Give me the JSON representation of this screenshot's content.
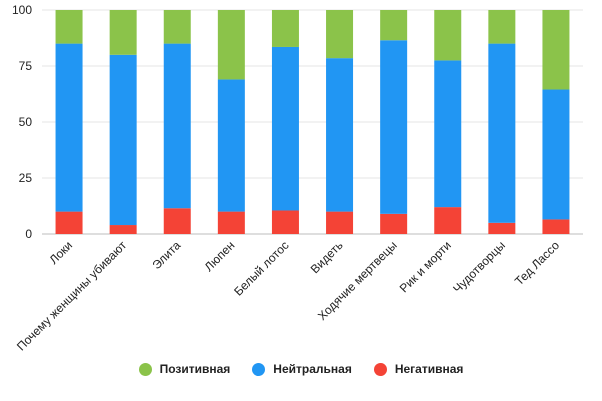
{
  "chart_data": {
    "type": "bar",
    "stacked": true,
    "categories": [
      "Локи",
      "Почему женщины убивают",
      "Элита",
      "Люпен",
      "Белый лотос",
      "Видеть",
      "Ходячие мертвецы",
      "Рик и морти",
      "Чудотворцы",
      "Тед Лассо"
    ],
    "series": [
      {
        "name": "Негативная",
        "color": "#f44336",
        "values": [
          10,
          4,
          11.5,
          10,
          10.5,
          10,
          9,
          12,
          5,
          6.5
        ]
      },
      {
        "name": "Нейтральная",
        "color": "#2196f3",
        "values": [
          75,
          76,
          73.5,
          59,
          73,
          68.5,
          77.5,
          65.5,
          80,
          58
        ]
      },
      {
        "name": "Позитивная",
        "color": "#8bc34a",
        "values": [
          15,
          20,
          15,
          31,
          16.5,
          21.5,
          13.5,
          22.5,
          15,
          35.5
        ]
      }
    ],
    "ylim": [
      0,
      100
    ],
    "yticks": [
      0,
      25,
      50,
      75,
      100
    ],
    "legend": [
      {
        "label": "Позитивная",
        "color": "#8bc34a"
      },
      {
        "label": "Нейтральная",
        "color": "#2196f3"
      },
      {
        "label": "Негативная",
        "color": "#f44336"
      }
    ]
  }
}
